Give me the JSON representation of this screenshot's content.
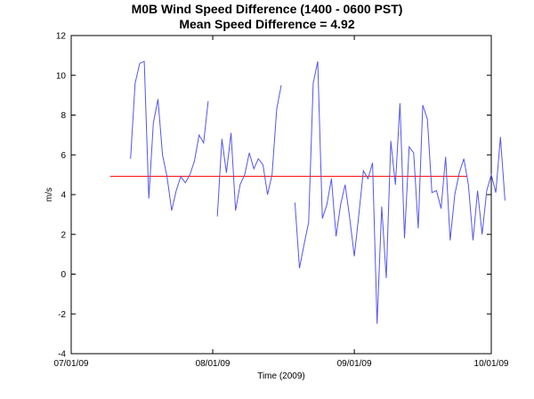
{
  "chart_data": {
    "type": "line",
    "title": "M0B Wind Speed Difference (1400 - 0600 PST)",
    "subtitle": "Mean Speed Difference = 4.92",
    "xlabel": "Time (2009)",
    "ylabel": "m/s",
    "xlim": [
      "07/01/09",
      "10/01/09"
    ],
    "ylim": [
      -4,
      12
    ],
    "x_tick_labels": [
      "07/01/09",
      "08/01/09",
      "09/01/09",
      "10/01/09"
    ],
    "y_tick_labels": [
      "-4",
      "-2",
      "0",
      "2",
      "4",
      "6",
      "8",
      "10",
      "12"
    ],
    "y_ticks": [
      -4,
      -2,
      0,
      2,
      4,
      6,
      8,
      10,
      12
    ],
    "grid": false,
    "mean_line": {
      "value": 4.92,
      "color": "#ff0000"
    },
    "series": [
      {
        "color": "#5555ee",
        "segments": [
          [
            [
              "07/14/09",
              5.8
            ],
            [
              "07/15/09",
              9.6
            ],
            [
              "07/16/09",
              10.6
            ],
            [
              "07/17/09",
              10.7
            ],
            [
              "07/18/09",
              3.8
            ],
            [
              "07/19/09",
              7.6
            ],
            [
              "07/20/09",
              8.8
            ],
            [
              "07/21/09",
              6.0
            ],
            [
              "07/22/09",
              4.9
            ],
            [
              "07/23/09",
              3.2
            ],
            [
              "07/24/09",
              4.2
            ],
            [
              "07/25/09",
              4.9
            ],
            [
              "07/26/09",
              4.6
            ],
            [
              "07/27/09",
              5.0
            ],
            [
              "07/28/09",
              5.7
            ],
            [
              "07/29/09",
              7.0
            ],
            [
              "07/30/09",
              6.6
            ],
            [
              "07/31/09",
              8.7
            ]
          ],
          [
            [
              "08/02/09",
              2.9
            ],
            [
              "08/03/09",
              6.8
            ],
            [
              "08/04/09",
              5.1
            ],
            [
              "08/05/09",
              7.1
            ],
            [
              "08/06/09",
              3.2
            ],
            [
              "08/07/09",
              4.5
            ],
            [
              "08/08/09",
              5.0
            ],
            [
              "08/09/09",
              6.1
            ],
            [
              "08/10/09",
              5.3
            ],
            [
              "08/11/09",
              5.8
            ],
            [
              "08/12/09",
              5.5
            ],
            [
              "08/13/09",
              4.0
            ],
            [
              "08/14/09",
              5.0
            ],
            [
              "08/15/09",
              8.3
            ],
            [
              "08/16/09",
              9.5
            ]
          ],
          [
            [
              "08/19/09",
              3.6
            ],
            [
              "08/20/09",
              0.3
            ],
            [
              "08/21/09",
              1.5
            ],
            [
              "08/22/09",
              2.6
            ],
            [
              "08/23/09",
              9.6
            ],
            [
              "08/24/09",
              10.7
            ],
            [
              "08/25/09",
              2.8
            ],
            [
              "08/26/09",
              3.5
            ],
            [
              "08/27/09",
              4.8
            ],
            [
              "08/28/09",
              1.9
            ],
            [
              "08/29/09",
              3.5
            ],
            [
              "08/30/09",
              4.5
            ],
            [
              "08/31/09",
              2.8
            ],
            [
              "09/01/09",
              0.9
            ],
            [
              "09/02/09",
              3.0
            ],
            [
              "09/03/09",
              5.2
            ],
            [
              "09/04/09",
              4.8
            ],
            [
              "09/05/09",
              5.6
            ],
            [
              "09/06/09",
              -2.5
            ],
            [
              "09/07/09",
              3.4
            ],
            [
              "09/08/09",
              -0.2
            ],
            [
              "09/09/09",
              6.7
            ],
            [
              "09/10/09",
              4.5
            ],
            [
              "09/11/09",
              8.6
            ],
            [
              "09/12/09",
              1.8
            ],
            [
              "09/13/09",
              6.4
            ],
            [
              "09/14/09",
              6.1
            ],
            [
              "09/15/09",
              2.3
            ],
            [
              "09/16/09",
              8.5
            ],
            [
              "09/17/09",
              7.8
            ],
            [
              "09/18/09",
              4.1
            ],
            [
              "09/19/09",
              4.2
            ],
            [
              "09/20/09",
              3.3
            ],
            [
              "09/21/09",
              5.9
            ],
            [
              "09/22/09",
              1.7
            ],
            [
              "09/23/09",
              4.0
            ],
            [
              "09/24/09",
              5.1
            ],
            [
              "09/25/09",
              5.8
            ],
            [
              "09/26/09",
              4.5
            ],
            [
              "09/27/09",
              1.7
            ],
            [
              "09/28/09",
              4.2
            ],
            [
              "09/29/09",
              2.0
            ],
            [
              "09/30/09",
              4.2
            ],
            [
              "10/01/09",
              5.0
            ],
            [
              "10/02/09",
              4.1
            ],
            [
              "10/03/09",
              6.9
            ],
            [
              "10/04/09",
              3.7
            ]
          ]
        ]
      }
    ]
  }
}
